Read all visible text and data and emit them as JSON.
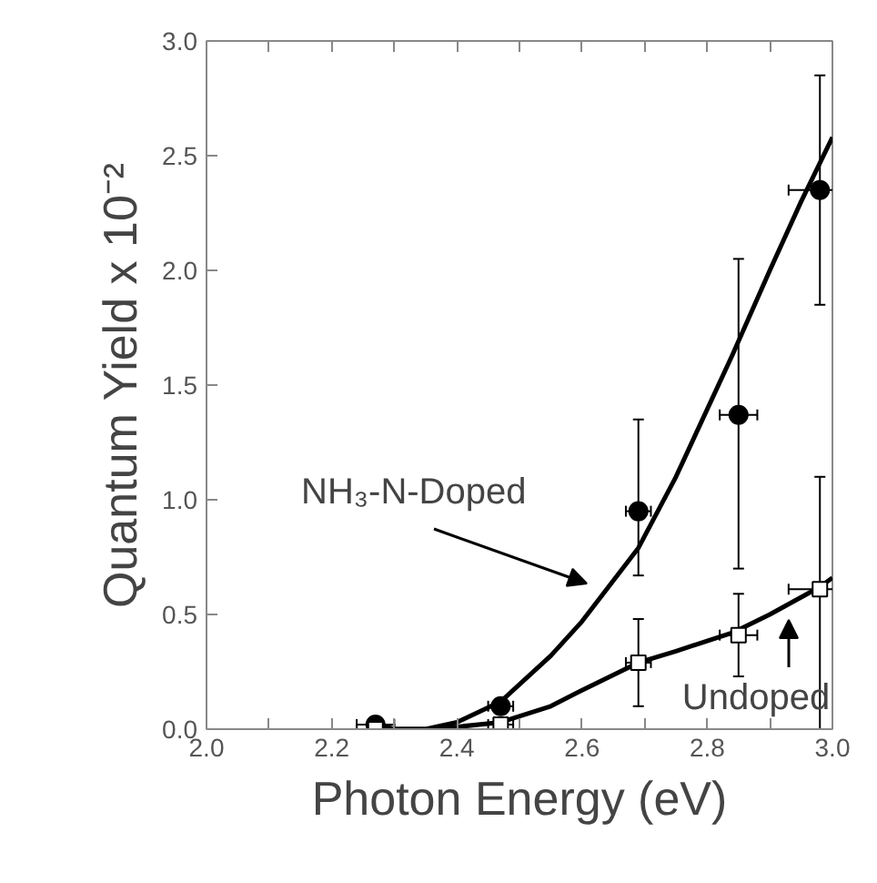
{
  "chart_data": {
    "type": "scatter",
    "xlabel": "Photon Energy (eV)",
    "ylabel": "Quantum Yield x 10⁻²",
    "xlim": [
      2.0,
      3.0
    ],
    "ylim": [
      0,
      3.0
    ],
    "xticks": [
      {
        "value": 2.0,
        "label": "2.0"
      },
      {
        "value": 2.1,
        "label": null
      },
      2.2,
      {
        "value": 2.3,
        "label": null
      },
      2.4,
      {
        "value": 2.5,
        "label": null
      },
      2.6,
      {
        "value": 2.7,
        "label": null
      },
      2.8,
      {
        "value": 2.9,
        "label": null
      },
      {
        "value": 3.0,
        "label": "3.0"
      }
    ],
    "yticks": [
      {
        "value": 0,
        "label": "0.0"
      },
      0.5,
      {
        "value": 1,
        "label": "1.0"
      },
      1.5,
      {
        "value": 2,
        "label": "2.0"
      },
      2.5,
      {
        "value": 3,
        "label": "3.0"
      }
    ],
    "grid": false,
    "series": [
      {
        "marker": "circle",
        "color": "#000000",
        "x": [
          2.27,
          2.47,
          2.69,
          2.85,
          2.98
        ],
        "values": [
          0.02,
          0.1,
          0.95,
          1.37,
          2.35
        ],
        "errors": [
          null,
          null,
          [
            0.67,
            1.35
          ],
          [
            0.7,
            2.05
          ],
          [
            1.85,
            2.85
          ]
        ],
        "xerrors": [
          0.03,
          0.02,
          0.02,
          0.03,
          0.05
        ]
      },
      {
        "marker": "square",
        "color": "#000000",
        "x": [
          2.27,
          2.47,
          2.69,
          2.85,
          2.98
        ],
        "values": [
          0.0,
          0.02,
          0.29,
          0.41,
          0.61
        ],
        "errors": [
          null,
          null,
          [
            0.1,
            0.48
          ],
          [
            0.23,
            0.59
          ],
          [
            0.0,
            1.1
          ]
        ],
        "xerrors": [
          0.03,
          0.02,
          0.02,
          0.03,
          0.05
        ]
      },
      {
        "type": "line",
        "color": "#000000",
        "x": [
          2.27,
          2.3,
          2.35,
          2.4,
          2.47,
          2.55,
          2.6,
          2.69,
          2.75,
          2.84,
          2.9,
          2.95,
          3.0
        ],
        "values": [
          0.02,
          0.0,
          0.0,
          0.03,
          0.12,
          0.32,
          0.47,
          0.79,
          1.1,
          1.63,
          2.0,
          2.3,
          2.58
        ]
      },
      {
        "type": "line",
        "color": "#000000",
        "x": [
          2.27,
          2.3,
          2.35,
          2.4,
          2.47,
          2.55,
          2.6,
          2.69,
          2.75,
          2.84,
          2.9,
          2.98,
          3.0
        ],
        "values": [
          0.02,
          0.0,
          0.0,
          0.01,
          0.03,
          0.1,
          0.17,
          0.29,
          0.34,
          0.42,
          0.5,
          0.62,
          0.66
        ]
      }
    ],
    "annotations": [
      "NH₃-N-Doped",
      "Undoped"
    ]
  }
}
